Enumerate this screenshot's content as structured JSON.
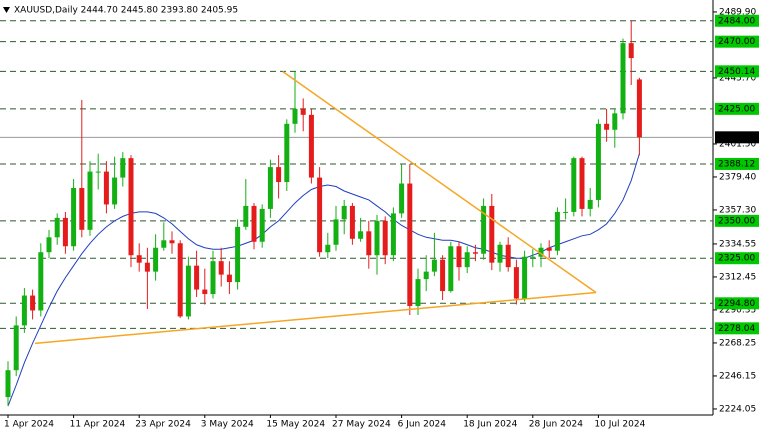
{
  "chart_data": {
    "type": "candlestick",
    "title": "XAUUSD,Daily  2444.70 2445.80 2393.80 2405.95",
    "categories": [
      "1 Apr 2024",
      null,
      null,
      null,
      null,
      null,
      null,
      null,
      "11 Apr 2024",
      null,
      null,
      null,
      null,
      null,
      null,
      null,
      "23 Apr 2024",
      null,
      null,
      null,
      null,
      null,
      null,
      null,
      "3 May 2024",
      null,
      null,
      null,
      null,
      null,
      null,
      null,
      "15 May 2024",
      null,
      null,
      null,
      null,
      null,
      null,
      null,
      "27 May 2024",
      null,
      null,
      null,
      null,
      null,
      null,
      null,
      "6 Jun 2024",
      null,
      null,
      null,
      null,
      null,
      null,
      null,
      "18 Jun 2024",
      null,
      null,
      null,
      null,
      null,
      null,
      null,
      "28 Jun 2024",
      null,
      null,
      null,
      null,
      null,
      null,
      null,
      "10 Jul 2024",
      null,
      null,
      null,
      null,
      null
    ],
    "open": [
      2232,
      2250,
      2280,
      2300,
      2290,
      2329,
      2339,
      2352,
      2333,
      2372,
      2344,
      2383,
      2383,
      2361,
      2379,
      2392,
      2327,
      2322,
      2316,
      2332,
      2337,
      2335,
      2286,
      2320,
      2304,
      2301,
      2323,
      2314,
      2309,
      2346,
      2360,
      2336,
      2358,
      2386,
      2376,
      2415,
      2425,
      2421,
      2379,
      2329,
      2334,
      2351,
      2360,
      2338,
      2343,
      2327,
      2350,
      2327,
      2355,
      2375,
      2293,
      2311,
      2316,
      2324,
      2303,
      2333,
      2319,
      2329,
      2328,
      2360,
      2322,
      2334,
      2319,
      2298,
      2326,
      2326,
      2332,
      2330,
      2356,
      2356,
      2392,
      2358,
      2364,
      2415,
      2411,
      2422,
      2469,
      2444.7
    ],
    "high": [
      2256,
      2286,
      2305,
      2304,
      2335,
      2344,
      2355,
      2356,
      2378,
      2431,
      2390,
      2395,
      2390,
      2393,
      2396,
      2394,
      2335,
      2332,
      2341,
      2349,
      2343,
      2337,
      2326,
      2330,
      2318,
      2330,
      2332,
      2323,
      2351,
      2378,
      2362,
      2361,
      2391,
      2394,
      2418,
      2450,
      2432,
      2425,
      2386,
      2342,
      2360,
      2364,
      2362,
      2352,
      2350,
      2354,
      2353,
      2359,
      2388,
      2388,
      2318,
      2327,
      2342,
      2327,
      2336,
      2336,
      2333,
      2334,
      2365,
      2368,
      2336,
      2339,
      2324,
      2330,
      2331,
      2335,
      2337,
      2359,
      2365,
      2393,
      2393,
      2372,
      2418,
      2425,
      2425,
      2472,
      2484,
      2445.8
    ],
    "low": [
      2226,
      2246,
      2275,
      2284,
      2286,
      2325,
      2334,
      2328,
      2330,
      2339,
      2340,
      2371,
      2355,
      2358,
      2373,
      2319,
      2316,
      2291,
      2310,
      2330,
      2328,
      2285,
      2284,
      2299,
      2294,
      2298,
      2306,
      2301,
      2304,
      2344,
      2331,
      2332,
      2352,
      2365,
      2370,
      2409,
      2410,
      2375,
      2326,
      2325,
      2330,
      2341,
      2334,
      2336,
      2318,
      2314,
      2321,
      2323,
      2352,
      2287,
      2287,
      2303,
      2313,
      2297,
      2302,
      2310,
      2315,
      2323,
      2324,
      2317,
      2316,
      2316,
      2294,
      2296,
      2319,
      2319,
      2325,
      2327,
      2351,
      2353,
      2353,
      2353,
      2359,
      2403,
      2399,
      2418,
      2441,
      2393.8
    ],
    "close": [
      2250,
      2280,
      2300,
      2290,
      2329,
      2339,
      2352,
      2333,
      2372,
      2344,
      2383,
      2383,
      2361,
      2379,
      2392,
      2327,
      2322,
      2316,
      2332,
      2337,
      2335,
      2286,
      2320,
      2304,
      2301,
      2323,
      2314,
      2309,
      2346,
      2360,
      2336,
      2358,
      2386,
      2376,
      2415,
      2425,
      2421,
      2379,
      2329,
      2334,
      2351,
      2360,
      2338,
      2343,
      2327,
      2350,
      2327,
      2355,
      2375,
      2293,
      2311,
      2316,
      2324,
      2303,
      2333,
      2319,
      2329,
      2328,
      2360,
      2322,
      2334,
      2319,
      2298,
      2326,
      2326,
      2332,
      2330,
      2356,
      2356,
      2392,
      2358,
      2364,
      2415,
      2411,
      2422,
      2469,
      2459,
      2405.95
    ],
    "up_color": "#12b012",
    "down_color": "#e51c1c",
    "moving_average": {
      "color": "#1f3fbf",
      "values": [
        2226,
        2240,
        2255,
        2268,
        2280,
        2292,
        2303,
        2312,
        2320,
        2328,
        2335,
        2341,
        2346,
        2350,
        2353,
        2355,
        2356,
        2356,
        2355,
        2352,
        2348,
        2343,
        2338,
        2334,
        2332,
        2331,
        2331,
        2332,
        2333,
        2335,
        2337,
        2341,
        2346,
        2350,
        2356,
        2362,
        2367,
        2371,
        2373,
        2374,
        2373,
        2370,
        2368,
        2366,
        2364,
        2360,
        2356,
        2351,
        2347,
        2344,
        2341,
        2339,
        2338,
        2337,
        2337,
        2336,
        2334,
        2332,
        2331,
        2329,
        2327,
        2326,
        2325,
        2325,
        2327,
        2329,
        2332,
        2334,
        2336,
        2338,
        2340,
        2341,
        2344,
        2348,
        2355,
        2364,
        2377,
        2395
      ]
    },
    "trendlines": [
      {
        "color": "#f5a623",
        "from": {
          "x": 33.5,
          "y": 2450
        },
        "to": {
          "x": 71.7,
          "y": 2302
        }
      },
      {
        "color": "#f5a623",
        "from": {
          "x": 3.3,
          "y": 2268
        },
        "to": {
          "x": 71.7,
          "y": 2302
        }
      }
    ],
    "levels": [
      {
        "value": 2484,
        "label": "2484.00"
      },
      {
        "value": 2470,
        "label": "2470.00"
      },
      {
        "value": 2450.14,
        "label": "2450.14"
      },
      {
        "value": 2425,
        "label": "2425.00"
      },
      {
        "value": 2388.12,
        "label": "2388.12"
      },
      {
        "value": 2350,
        "label": "2350.00"
      },
      {
        "value": 2325,
        "label": "2325.00"
      },
      {
        "value": 2294.8,
        "label": "2294.80"
      },
      {
        "value": 2278.04,
        "label": "2278.04"
      }
    ],
    "level_color": "#2d5a2d",
    "level_label_color": "#00c800",
    "price_line": 2405.95,
    "ylim": [
      2220.0,
      2497.9
    ],
    "yticks": [
      {
        "value": 2489.9,
        "label": "2489.90"
      },
      {
        "value": 2445.7,
        "label": "2445.70"
      },
      {
        "value": 2401.5,
        "label": "2401.50"
      },
      {
        "value": 2379.4,
        "label": "2379.40"
      },
      {
        "value": 2357.3,
        "label": "2357.30"
      },
      2334.55,
      2312.45,
      2290.35,
      2268.25,
      2246.15,
      2224.05
    ]
  }
}
